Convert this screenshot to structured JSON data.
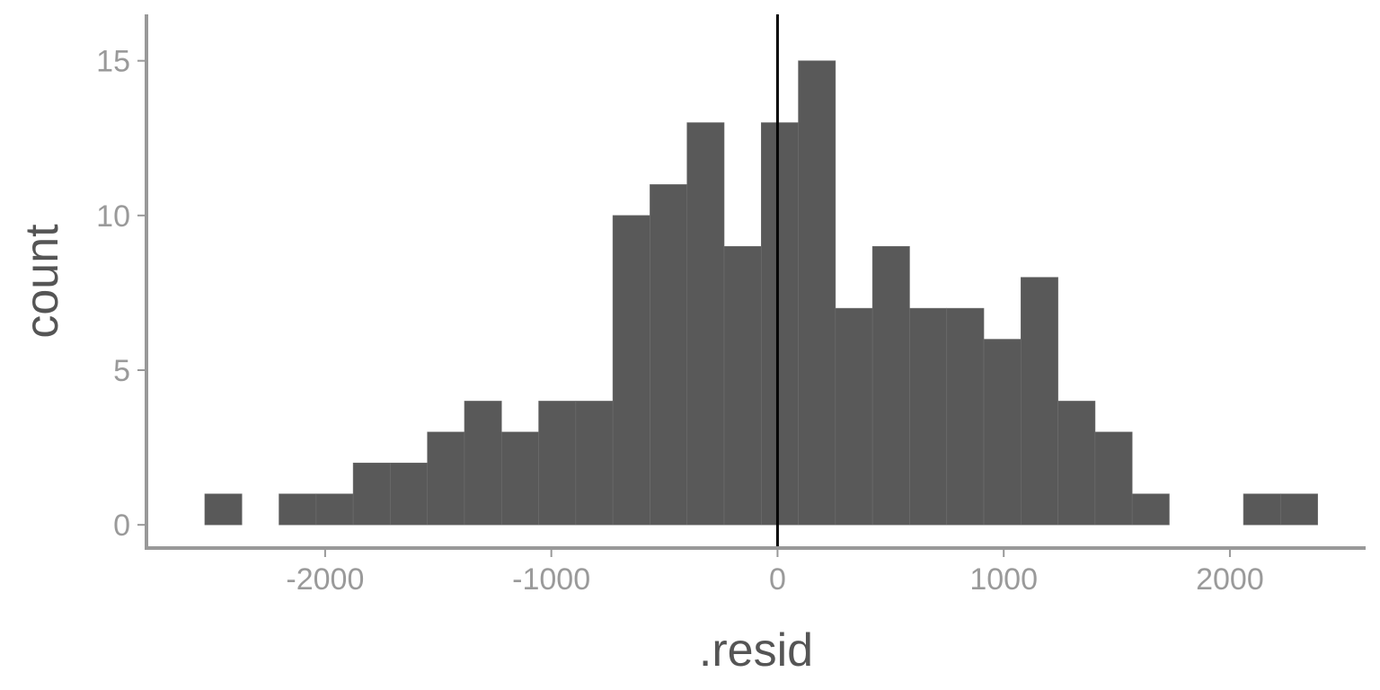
{
  "chart_data": {
    "type": "bar",
    "xlabel": ".resid",
    "ylabel": "count",
    "bin_width": 164,
    "bins": [
      {
        "x0": -2532,
        "x1": -2368,
        "count": 1
      },
      {
        "x0": -2368,
        "x1": -2204,
        "count": 0
      },
      {
        "x0": -2204,
        "x1": -2040,
        "count": 1
      },
      {
        "x0": -2040,
        "x1": -1876,
        "count": 1
      },
      {
        "x0": -1876,
        "x1": -1712,
        "count": 2
      },
      {
        "x0": -1712,
        "x1": -1548,
        "count": 2
      },
      {
        "x0": -1548,
        "x1": -1384,
        "count": 3
      },
      {
        "x0": -1384,
        "x1": -1220,
        "count": 4
      },
      {
        "x0": -1220,
        "x1": -1056,
        "count": 3
      },
      {
        "x0": -1056,
        "x1": -892,
        "count": 4
      },
      {
        "x0": -892,
        "x1": -728,
        "count": 4
      },
      {
        "x0": -728,
        "x1": -564,
        "count": 10
      },
      {
        "x0": -564,
        "x1": -400,
        "count": 11
      },
      {
        "x0": -400,
        "x1": -236,
        "count": 13
      },
      {
        "x0": -236,
        "x1": -72,
        "count": 9
      },
      {
        "x0": -72,
        "x1": 92,
        "count": 13
      },
      {
        "x0": 92,
        "x1": 256,
        "count": 15
      },
      {
        "x0": 256,
        "x1": 420,
        "count": 7
      },
      {
        "x0": 420,
        "x1": 584,
        "count": 9
      },
      {
        "x0": 584,
        "x1": 748,
        "count": 7
      },
      {
        "x0": 748,
        "x1": 912,
        "count": 7
      },
      {
        "x0": 912,
        "x1": 1076,
        "count": 6
      },
      {
        "x0": 1076,
        "x1": 1240,
        "count": 8
      },
      {
        "x0": 1240,
        "x1": 1404,
        "count": 4
      },
      {
        "x0": 1404,
        "x1": 1568,
        "count": 3
      },
      {
        "x0": 1568,
        "x1": 1732,
        "count": 1
      },
      {
        "x0": 1732,
        "x1": 1896,
        "count": 0
      },
      {
        "x0": 1896,
        "x1": 2060,
        "count": 0
      },
      {
        "x0": 2060,
        "x1": 2224,
        "count": 1
      },
      {
        "x0": 2224,
        "x1": 2388,
        "count": 1
      }
    ],
    "x_ticks": [
      -2000,
      -1000,
      0,
      1000,
      2000
    ],
    "x_tick_labels": [
      "-2000",
      "-1000",
      "0",
      "1000",
      "2000"
    ],
    "y_ticks": [
      0,
      5,
      10,
      15
    ],
    "y_tick_labels": [
      "0",
      "5",
      "10",
      "15"
    ],
    "xlim": [
      -2790,
      2600
    ],
    "ylim": [
      -0.75,
      16.5
    ],
    "reference_line": {
      "x": 0
    },
    "grid": false,
    "colors": {
      "bar": "#595959",
      "bar_outline": "#6e6e6e",
      "axis": "#999999",
      "tick_label": "#9a9a9a",
      "axis_title": "#555555",
      "reference_line": "#000000"
    }
  }
}
